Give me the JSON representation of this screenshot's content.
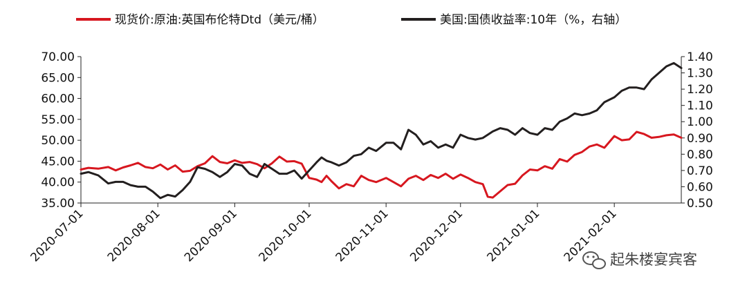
{
  "watermark": {
    "text": "起朱楼宴宾客"
  },
  "chart_data": {
    "type": "line",
    "title": "",
    "xlabel": "",
    "ylabel": "",
    "x_ticks": [
      "2020-07-01",
      "2020-08-01",
      "2020-09-01",
      "2020-10-01",
      "2020-11-01",
      "2020-12-01",
      "2021-01-01",
      "2021-02-01"
    ],
    "x_range": [
      "2020-07-01",
      "2021-02-28"
    ],
    "y_left": {
      "min": 35,
      "max": 70,
      "ticks": [
        "35.00",
        "40.00",
        "45.00",
        "50.00",
        "55.00",
        "60.00",
        "65.00",
        "70.00"
      ]
    },
    "y_right": {
      "min": 0.5,
      "max": 1.4,
      "ticks": [
        "0.50",
        "0.60",
        "0.70",
        "0.80",
        "0.90",
        "1.00",
        "1.10",
        "1.20",
        "1.30",
        "1.40"
      ]
    },
    "legend_position": "top",
    "series": [
      {
        "name": "现货价:原油:英国布伦特Dtd（美元/桶）",
        "axis": "left",
        "color": "#d7171f",
        "points": [
          [
            "2020-07-01",
            43.0
          ],
          [
            "2020-07-04",
            43.4
          ],
          [
            "2020-07-08",
            43.2
          ],
          [
            "2020-07-12",
            43.6
          ],
          [
            "2020-07-15",
            42.8
          ],
          [
            "2020-07-18",
            43.5
          ],
          [
            "2020-07-21",
            44.0
          ],
          [
            "2020-07-24",
            44.6
          ],
          [
            "2020-07-27",
            43.6
          ],
          [
            "2020-07-30",
            43.3
          ],
          [
            "2020-08-02",
            44.2
          ],
          [
            "2020-08-05",
            43.0
          ],
          [
            "2020-08-08",
            44.0
          ],
          [
            "2020-08-11",
            42.5
          ],
          [
            "2020-08-14",
            42.7
          ],
          [
            "2020-08-17",
            43.8
          ],
          [
            "2020-08-20",
            44.5
          ],
          [
            "2020-08-23",
            46.2
          ],
          [
            "2020-08-26",
            44.8
          ],
          [
            "2020-08-29",
            44.5
          ],
          [
            "2020-09-01",
            45.2
          ],
          [
            "2020-09-04",
            44.6
          ],
          [
            "2020-09-07",
            44.8
          ],
          [
            "2020-09-10",
            44.3
          ],
          [
            "2020-09-13",
            43.3
          ],
          [
            "2020-09-16",
            44.5
          ],
          [
            "2020-09-19",
            46.1
          ],
          [
            "2020-09-22",
            44.9
          ],
          [
            "2020-09-25",
            45.0
          ],
          [
            "2020-09-28",
            44.4
          ],
          [
            "2020-10-01",
            41.0
          ],
          [
            "2020-10-04",
            40.6
          ],
          [
            "2020-10-06",
            40.0
          ],
          [
            "2020-10-08",
            41.5
          ],
          [
            "2020-10-10",
            40.2
          ],
          [
            "2020-10-13",
            38.5
          ],
          [
            "2020-10-16",
            39.5
          ],
          [
            "2020-10-19",
            39.0
          ],
          [
            "2020-10-22",
            41.5
          ],
          [
            "2020-10-25",
            40.5
          ],
          [
            "2020-10-28",
            40.0
          ],
          [
            "2020-11-01",
            41.0
          ],
          [
            "2020-11-04",
            40.0
          ],
          [
            "2020-11-07",
            39.0
          ],
          [
            "2020-11-10",
            40.8
          ],
          [
            "2020-11-13",
            41.5
          ],
          [
            "2020-11-16",
            40.5
          ],
          [
            "2020-11-19",
            41.7
          ],
          [
            "2020-11-22",
            41.0
          ],
          [
            "2020-11-25",
            42.0
          ],
          [
            "2020-11-28",
            40.8
          ],
          [
            "2020-12-01",
            41.8
          ],
          [
            "2020-12-04",
            41.0
          ],
          [
            "2020-12-07",
            40.0
          ],
          [
            "2020-12-10",
            39.5
          ],
          [
            "2020-12-12",
            36.5
          ],
          [
            "2020-12-14",
            36.3
          ],
          [
            "2020-12-17",
            37.8
          ],
          [
            "2020-12-20",
            39.3
          ],
          [
            "2020-12-23",
            39.6
          ],
          [
            "2020-12-26",
            41.6
          ],
          [
            "2020-12-29",
            43.0
          ],
          [
            "2021-01-01",
            42.8
          ],
          [
            "2021-01-04",
            43.8
          ],
          [
            "2021-01-07",
            43.2
          ],
          [
            "2021-01-10",
            45.5
          ],
          [
            "2021-01-13",
            44.9
          ],
          [
            "2021-01-16",
            46.5
          ],
          [
            "2021-01-19",
            47.2
          ],
          [
            "2021-01-22",
            48.5
          ],
          [
            "2021-01-25",
            49.0
          ],
          [
            "2021-01-28",
            48.2
          ],
          [
            "2021-02-01",
            51.0
          ],
          [
            "2021-02-04",
            50.0
          ],
          [
            "2021-02-07",
            50.2
          ],
          [
            "2021-02-10",
            52.0
          ],
          [
            "2021-02-13",
            51.5
          ],
          [
            "2021-02-16",
            50.6
          ],
          [
            "2021-02-19",
            50.8
          ],
          [
            "2021-02-22",
            51.2
          ],
          [
            "2021-02-25",
            51.4
          ],
          [
            "2021-02-28",
            50.6
          ]
        ]
      },
      {
        "name": "美国:国债收益率:10年（%，右轴）",
        "axis": "right",
        "color": "#231f1f",
        "points": [
          [
            "2020-07-01",
            0.68
          ],
          [
            "2020-07-04",
            0.69
          ],
          [
            "2020-07-08",
            0.67
          ],
          [
            "2020-07-12",
            0.62
          ],
          [
            "2020-07-15",
            0.63
          ],
          [
            "2020-07-18",
            0.63
          ],
          [
            "2020-07-21",
            0.61
          ],
          [
            "2020-07-24",
            0.6
          ],
          [
            "2020-07-27",
            0.6
          ],
          [
            "2020-07-30",
            0.57
          ],
          [
            "2020-08-02",
            0.53
          ],
          [
            "2020-08-05",
            0.55
          ],
          [
            "2020-08-08",
            0.54
          ],
          [
            "2020-08-11",
            0.58
          ],
          [
            "2020-08-14",
            0.63
          ],
          [
            "2020-08-17",
            0.72
          ],
          [
            "2020-08-20",
            0.71
          ],
          [
            "2020-08-23",
            0.69
          ],
          [
            "2020-08-26",
            0.66
          ],
          [
            "2020-08-29",
            0.69
          ],
          [
            "2020-09-01",
            0.74
          ],
          [
            "2020-09-04",
            0.73
          ],
          [
            "2020-09-07",
            0.68
          ],
          [
            "2020-09-10",
            0.66
          ],
          [
            "2020-09-13",
            0.74
          ],
          [
            "2020-09-16",
            0.71
          ],
          [
            "2020-09-19",
            0.68
          ],
          [
            "2020-09-22",
            0.68
          ],
          [
            "2020-09-25",
            0.7
          ],
          [
            "2020-09-28",
            0.65
          ],
          [
            "2020-10-01",
            0.7
          ],
          [
            "2020-10-04",
            0.75
          ],
          [
            "2020-10-06",
            0.78
          ],
          [
            "2020-10-08",
            0.76
          ],
          [
            "2020-10-10",
            0.75
          ],
          [
            "2020-10-13",
            0.73
          ],
          [
            "2020-10-16",
            0.75
          ],
          [
            "2020-10-19",
            0.79
          ],
          [
            "2020-10-22",
            0.8
          ],
          [
            "2020-10-25",
            0.84
          ],
          [
            "2020-10-28",
            0.82
          ],
          [
            "2020-11-01",
            0.87
          ],
          [
            "2020-11-04",
            0.87
          ],
          [
            "2020-11-07",
            0.83
          ],
          [
            "2020-11-10",
            0.95
          ],
          [
            "2020-11-13",
            0.92
          ],
          [
            "2020-11-16",
            0.86
          ],
          [
            "2020-11-19",
            0.88
          ],
          [
            "2020-11-22",
            0.84
          ],
          [
            "2020-11-25",
            0.86
          ],
          [
            "2020-11-28",
            0.84
          ],
          [
            "2020-12-01",
            0.92
          ],
          [
            "2020-12-04",
            0.9
          ],
          [
            "2020-12-07",
            0.89
          ],
          [
            "2020-12-10",
            0.9
          ],
          [
            "2020-12-12",
            0.92
          ],
          [
            "2020-12-14",
            0.94
          ],
          [
            "2020-12-17",
            0.96
          ],
          [
            "2020-12-20",
            0.95
          ],
          [
            "2020-12-23",
            0.92
          ],
          [
            "2020-12-26",
            0.96
          ],
          [
            "2020-12-29",
            0.93
          ],
          [
            "2021-01-01",
            0.92
          ],
          [
            "2021-01-04",
            0.96
          ],
          [
            "2021-01-07",
            0.95
          ],
          [
            "2021-01-10",
            1.0
          ],
          [
            "2021-01-13",
            1.02
          ],
          [
            "2021-01-16",
            1.05
          ],
          [
            "2021-01-19",
            1.04
          ],
          [
            "2021-01-22",
            1.05
          ],
          [
            "2021-01-25",
            1.07
          ],
          [
            "2021-01-28",
            1.12
          ],
          [
            "2021-02-01",
            1.15
          ],
          [
            "2021-02-04",
            1.19
          ],
          [
            "2021-02-07",
            1.21
          ],
          [
            "2021-02-10",
            1.21
          ],
          [
            "2021-02-13",
            1.2
          ],
          [
            "2021-02-16",
            1.26
          ],
          [
            "2021-02-19",
            1.3
          ],
          [
            "2021-02-22",
            1.34
          ],
          [
            "2021-02-25",
            1.36
          ],
          [
            "2021-02-28",
            1.33
          ]
        ]
      }
    ]
  }
}
